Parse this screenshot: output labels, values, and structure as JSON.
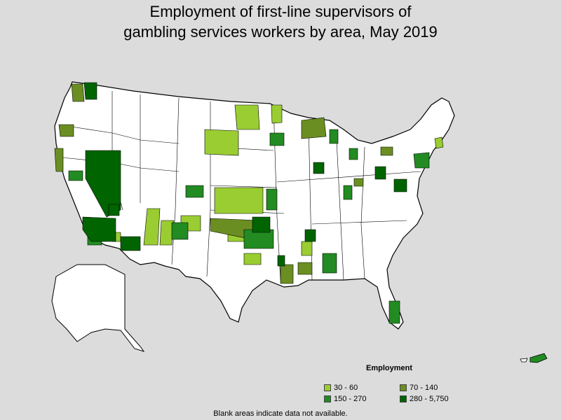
{
  "title_line1": "Employment of first-line supervisors of",
  "title_line2": "gambling services workers by area, May 2019",
  "legend": {
    "title": "Employment",
    "items": [
      {
        "label": "30 - 60",
        "color": "#9acd32"
      },
      {
        "label": "70 - 140",
        "color": "#6b8e23"
      },
      {
        "label": "150 - 270",
        "color": "#228b22"
      },
      {
        "label": "280 - 5,750",
        "color": "#006400"
      }
    ]
  },
  "note": "Blank areas indicate data not available."
}
